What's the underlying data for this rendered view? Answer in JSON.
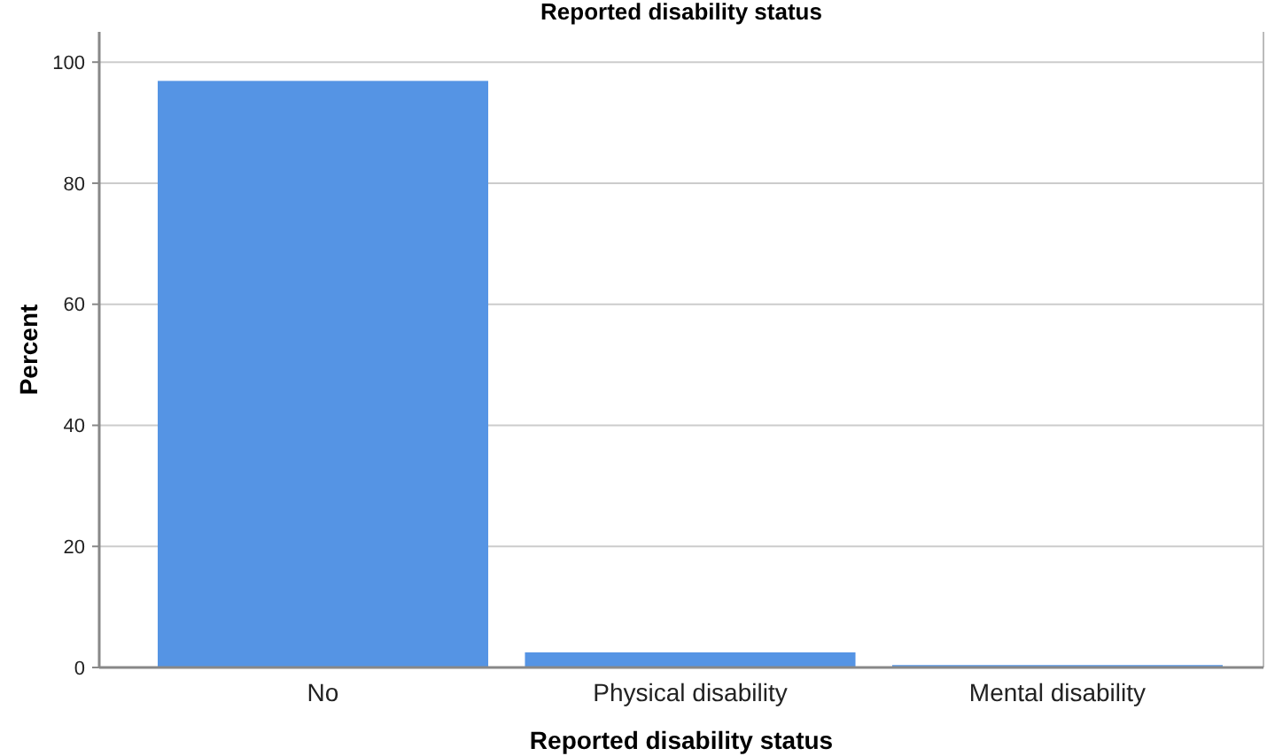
{
  "chart_data": {
    "type": "bar",
    "title": "Reported disability status",
    "xlabel": "Reported disability status",
    "ylabel": "Percent",
    "categories": [
      "No",
      "Physical disability",
      "Mental disability"
    ],
    "values": [
      96.9,
      2.5,
      0.4
    ],
    "color": "#5594e4",
    "ylim": [
      0,
      105
    ],
    "yticks": [
      0,
      20,
      40,
      60,
      80,
      100
    ],
    "grid": "y"
  }
}
